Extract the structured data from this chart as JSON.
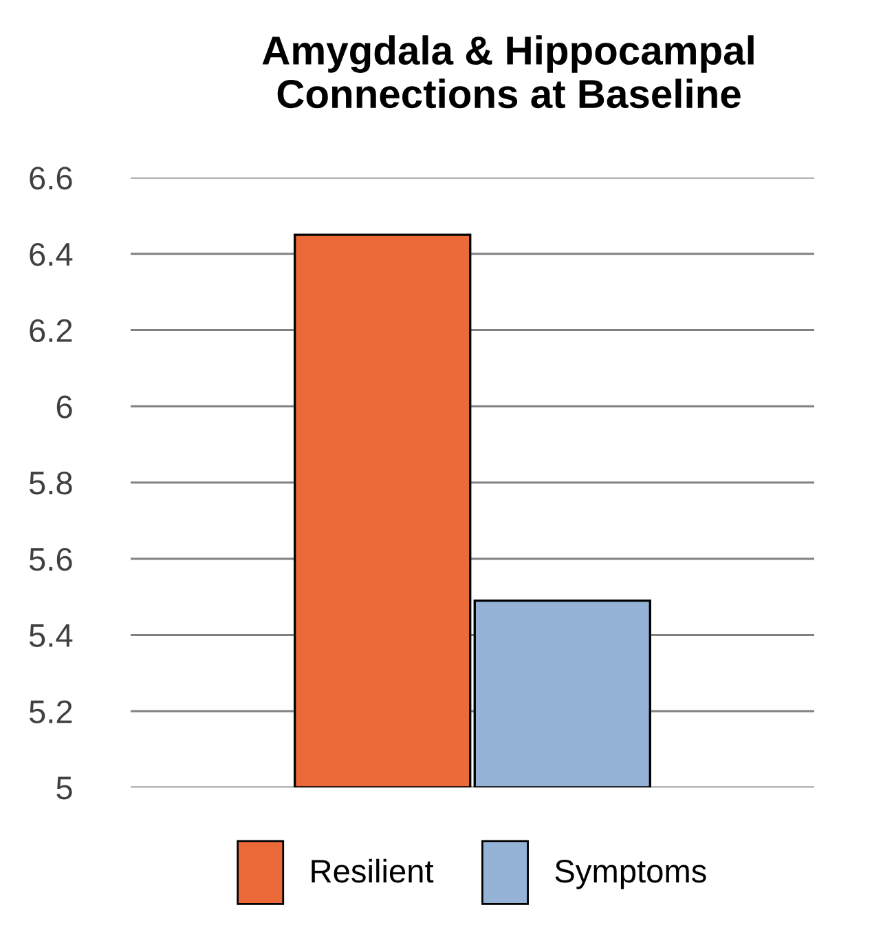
{
  "chart_data": {
    "type": "bar",
    "title": "Amygdala & Hippocampal\nConnections at Baseline",
    "categories": [
      null
    ],
    "series": [
      {
        "name": "Resilient",
        "color": "#ec6a39",
        "values": [
          6.45
        ]
      },
      {
        "name": "Symptoms",
        "color": "#95b3d7",
        "values": [
          5.49
        ]
      }
    ],
    "ylim": [
      5,
      6.6
    ],
    "yticks": [
      5,
      5.2,
      5.4,
      5.6,
      5.8,
      6,
      6.2,
      6.4,
      6.6
    ],
    "grid": "y",
    "legend": "bottom",
    "tick_labels": "y"
  }
}
